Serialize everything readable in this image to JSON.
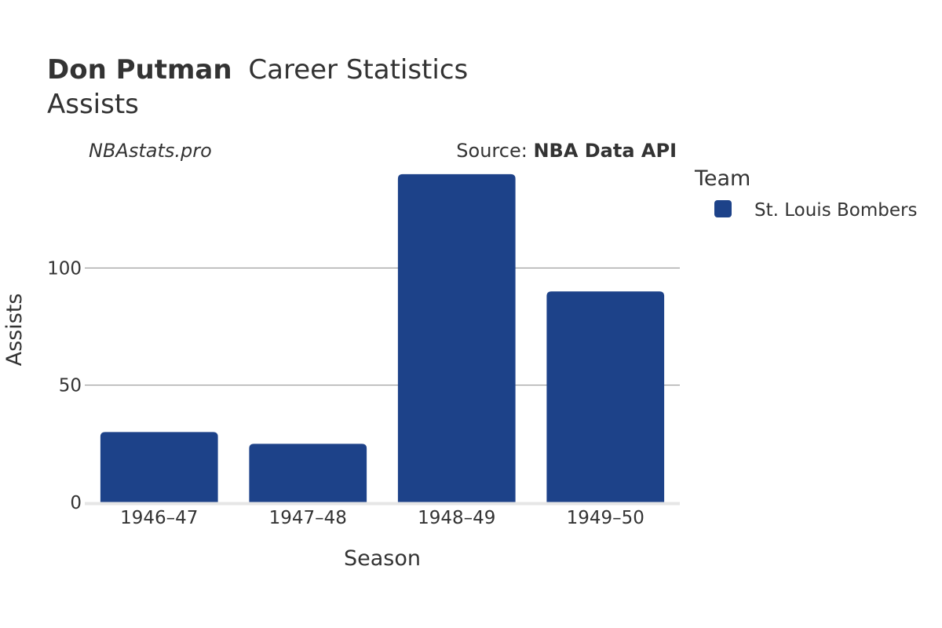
{
  "header": {
    "player_name": "Don Putman",
    "title_suffix": "Career Statistics",
    "subtitle": "Assists"
  },
  "credits": {
    "site": "NBAstats.pro",
    "source_prefix": "Source: ",
    "source_name": "NBA Data API"
  },
  "legend": {
    "title": "Team",
    "items": [
      {
        "label": "St. Louis Bombers",
        "color": "#1d4289"
      }
    ]
  },
  "chart_data": {
    "type": "bar",
    "categories": [
      "1946–47",
      "1947–48",
      "1948–49",
      "1949–50"
    ],
    "series": [
      {
        "name": "St. Louis Bombers",
        "values": [
          30,
          25,
          140,
          90
        ],
        "color": "#1d4289"
      }
    ],
    "xlabel": "Season",
    "ylabel": "Assists",
    "ylim": [
      0,
      150
    ],
    "yticks": [
      0,
      50,
      100
    ],
    "grid": true,
    "legend_position": "right"
  }
}
